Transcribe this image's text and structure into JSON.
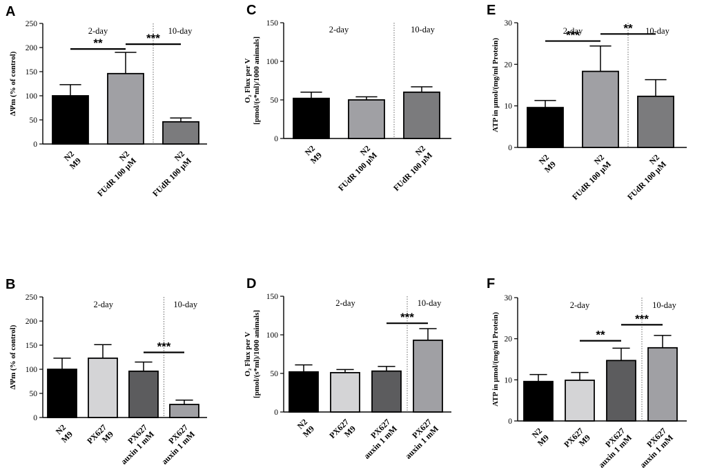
{
  "chart_data": [
    {
      "panel": "A",
      "type": "bar",
      "ylabel": "ΔΨm (% of control)",
      "ylim": [
        0,
        250
      ],
      "yticks": [
        0,
        50,
        100,
        150,
        200,
        250
      ],
      "categories": [
        [
          "N2",
          "M9"
        ],
        [
          "N2",
          "FUdR 100 µM"
        ],
        [
          "N2",
          "FUdR 100 µM"
        ]
      ],
      "values": [
        100,
        146,
        46
      ],
      "errors": [
        23,
        44,
        8
      ],
      "colors": [
        "#000000",
        "#a0a0a4",
        "#7b7b7d"
      ],
      "groups": [
        {
          "label": "2-day",
          "from": 0,
          "to": 1
        },
        {
          "label": "10-day",
          "from": 2,
          "to": 2
        }
      ],
      "divider_after": 1,
      "significance": [
        {
          "from": 0,
          "to": 1,
          "y": 197,
          "label": "**"
        },
        {
          "from": 1,
          "to": 2,
          "y": 207,
          "label": "***"
        }
      ]
    },
    {
      "panel": "C",
      "type": "bar",
      "ylabel": [
        "O₂ Flux per V",
        "[pmol/(s*ml)/1000 animals]"
      ],
      "ylim": [
        0,
        150
      ],
      "yticks": [
        0,
        50,
        100,
        150
      ],
      "categories": [
        [
          "N2",
          "M9"
        ],
        [
          "N2",
          "FUdR 100 µM"
        ],
        [
          "N2",
          "FUdR 100 µM"
        ]
      ],
      "values": [
        52,
        50,
        60
      ],
      "errors": [
        8,
        4,
        7
      ],
      "colors": [
        "#000000",
        "#a0a0a4",
        "#7b7b7d"
      ],
      "groups": [
        {
          "label": "2-day",
          "from": 0,
          "to": 1
        },
        {
          "label": "10-day",
          "from": 2,
          "to": 2
        }
      ],
      "divider_after": 1,
      "significance": []
    },
    {
      "panel": "E",
      "type": "bar",
      "ylabel": "ATP in µmol/(mg/ml Protein)",
      "ylim": [
        0,
        30
      ],
      "yticks": [
        0,
        10,
        20,
        30
      ],
      "categories": [
        [
          "N2",
          "M9"
        ],
        [
          "N2",
          "FUdR 100 µM"
        ],
        [
          "N2",
          "FUdR 100 µM"
        ]
      ],
      "values": [
        9.6,
        18.3,
        12.3
      ],
      "errors": [
        1.7,
        6.1,
        4.0
      ],
      "colors": [
        "#000000",
        "#a0a0a4",
        "#7b7b7d"
      ],
      "groups": [
        {
          "label": "2-day",
          "from": 0,
          "to": 1
        },
        {
          "label": "10-day",
          "from": 2,
          "to": 2
        }
      ],
      "divider_after": 1,
      "significance": [
        {
          "from": 0,
          "to": 1,
          "y": 25.6,
          "label": "***"
        },
        {
          "from": 1,
          "to": 2,
          "y": 27.3,
          "label": "**"
        }
      ]
    },
    {
      "panel": "B",
      "type": "bar",
      "ylabel": "ΔΨm (% of control)",
      "ylim": [
        0,
        250
      ],
      "yticks": [
        0,
        50,
        100,
        150,
        200,
        250
      ],
      "categories": [
        [
          "N2",
          "M9"
        ],
        [
          "PX627",
          "M9"
        ],
        [
          "PX627",
          "auxin 1 mM"
        ],
        [
          "PX627",
          "auxin 1 mM"
        ]
      ],
      "values": [
        100,
        123,
        96,
        27
      ],
      "errors": [
        23,
        28,
        19,
        9
      ],
      "colors": [
        "#000000",
        "#d4d4d6",
        "#5c5c5e",
        "#a0a0a4"
      ],
      "groups": [
        {
          "label": "2-day",
          "from": 0,
          "to": 2
        },
        {
          "label": "10-day",
          "from": 3,
          "to": 3
        }
      ],
      "divider_after": 2,
      "significance": [
        {
          "from": 2,
          "to": 3,
          "y": 135,
          "label": "***"
        }
      ]
    },
    {
      "panel": "D",
      "type": "bar",
      "ylabel": [
        "O₂ Flux per V",
        "[pmol/(s*ml)/1000 animals]"
      ],
      "ylim": [
        0,
        150
      ],
      "yticks": [
        0,
        50,
        100,
        150
      ],
      "categories": [
        [
          "N2",
          "M9"
        ],
        [
          "PX627",
          "M9"
        ],
        [
          "PX627",
          "auxin 1 mM"
        ],
        [
          "PX627",
          "auxin 1 mM"
        ]
      ],
      "values": [
        52,
        51,
        53,
        93
      ],
      "errors": [
        9,
        4,
        6,
        15
      ],
      "colors": [
        "#000000",
        "#d4d4d6",
        "#5c5c5e",
        "#a0a0a4"
      ],
      "groups": [
        {
          "label": "2-day",
          "from": 0,
          "to": 2
        },
        {
          "label": "10-day",
          "from": 3,
          "to": 3
        }
      ],
      "divider_after": 2,
      "significance": [
        {
          "from": 2,
          "to": 3,
          "y": 115,
          "label": "***"
        }
      ]
    },
    {
      "panel": "F",
      "type": "bar",
      "ylabel": "ATP in µmol/(mg/ml Protein)",
      "ylim": [
        0,
        30
      ],
      "yticks": [
        0,
        10,
        20,
        30
      ],
      "categories": [
        [
          "N2",
          "M9"
        ],
        [
          "PX627",
          "M9"
        ],
        [
          "PX627",
          "auxin 1 mM"
        ],
        [
          "PX627",
          "auxin 1 mM"
        ]
      ],
      "values": [
        9.6,
        9.9,
        14.7,
        17.8
      ],
      "errors": [
        1.7,
        1.9,
        3.0,
        3.0
      ],
      "colors": [
        "#000000",
        "#d4d4d6",
        "#5c5c5e",
        "#a0a0a4"
      ],
      "groups": [
        {
          "label": "2-day",
          "from": 0,
          "to": 2
        },
        {
          "label": "10-day",
          "from": 3,
          "to": 3
        }
      ],
      "divider_after": 2,
      "significance": [
        {
          "from": 1,
          "to": 2,
          "y": 19.5,
          "label": "**"
        },
        {
          "from": 2,
          "to": 3,
          "y": 23.4,
          "label": "***"
        }
      ]
    }
  ]
}
